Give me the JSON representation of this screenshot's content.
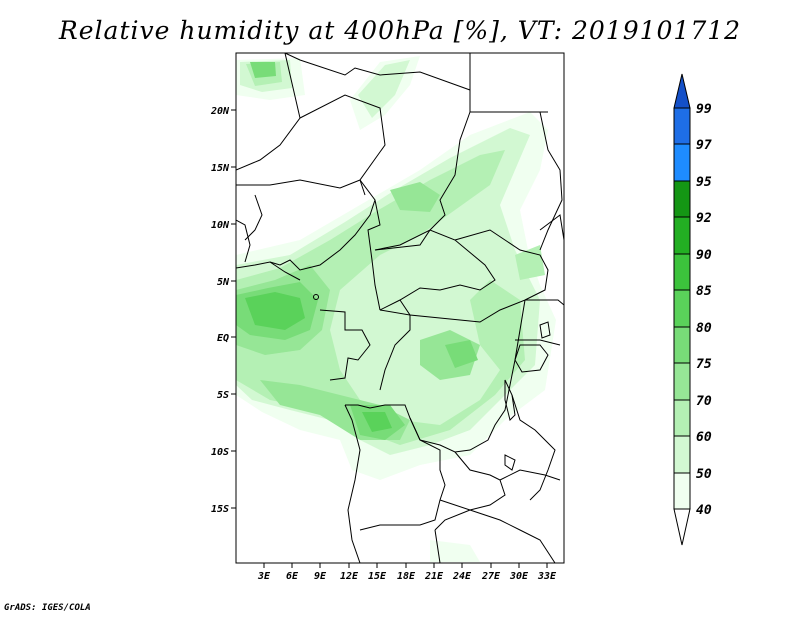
{
  "title": "Relative humidity at 400hPa [%], VT: 2019101712",
  "credit": "GrADS: IGES/COLA",
  "map": {
    "lat_labels": [
      "20N",
      "15N",
      "10N",
      "5N",
      "EQ",
      "5S",
      "10S",
      "15S"
    ],
    "lon_labels": [
      "3E",
      "6E",
      "9E",
      "12E",
      "15E",
      "18E",
      "21E",
      "24E",
      "27E",
      "30E",
      "33E"
    ]
  },
  "colorbar": {
    "labels": [
      "40",
      "50",
      "60",
      "70",
      "75",
      "80",
      "85",
      "90",
      "92",
      "95",
      "97",
      "99"
    ],
    "colors": {
      "c40": "#f0fff0",
      "c50": "#d2f8d2",
      "c60": "#b4f0b4",
      "c70": "#96e696",
      "c75": "#78dc78",
      "c80": "#5ad25a",
      "c85": "#3cc33c",
      "c90": "#23af23",
      "c92": "#149614",
      "c95": "#1e8cff",
      "c97": "#1e6ee6",
      "c99": "#1450c8"
    }
  }
}
